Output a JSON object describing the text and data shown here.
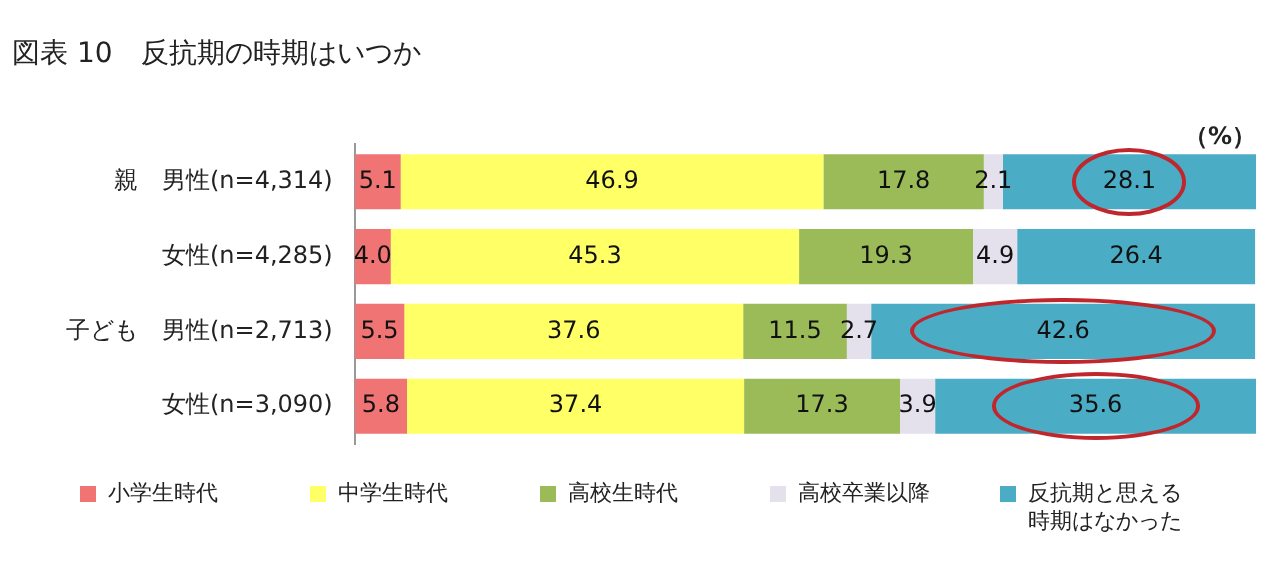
{
  "chart_data": {
    "type": "bar",
    "orientation": "horizontal",
    "stacked": true,
    "title": "図表 10　反抗期の時期はいつか",
    "annotations": [
      "（%）"
    ],
    "categories": [
      "親　男性(n=4,314)",
      "女性(n=4,285)",
      "子ども　男性(n=2,713)",
      "女性(n=3,090)"
    ],
    "xlim": [
      0,
      100
    ],
    "series": [
      {
        "name": "小学生時代",
        "color": "#f07474",
        "values": [
          5.1,
          4.0,
          5.5,
          5.8
        ],
        "value_labels": [
          "5.1",
          "4.0",
          "5.5",
          "5.8"
        ]
      },
      {
        "name": "中学生時代",
        "color": "#ffff66",
        "values": [
          46.9,
          45.3,
          37.6,
          37.4
        ],
        "value_labels": [
          "46.9",
          "45.3",
          "37.6",
          "37.4"
        ]
      },
      {
        "name": "高校生時代",
        "color": "#9bbb59",
        "values": [
          17.8,
          19.3,
          11.5,
          17.3
        ],
        "value_labels": [
          "17.8",
          "19.3",
          "11.5",
          "17.3"
        ]
      },
      {
        "name": "高校卒業以降",
        "color": "#e4e0ec",
        "values": [
          2.1,
          4.9,
          2.7,
          3.9
        ],
        "value_labels": [
          "2.1",
          "4.9",
          "2.7",
          "3.9"
        ]
      },
      {
        "name": "反抗期と思える時期はなかった",
        "color": "#4bacc6",
        "values": [
          28.1,
          26.4,
          42.6,
          35.6
        ],
        "value_labels": [
          "28.1",
          "26.4",
          "42.6",
          "35.6"
        ]
      }
    ],
    "grid": false,
    "legend": "bottom"
  }
}
